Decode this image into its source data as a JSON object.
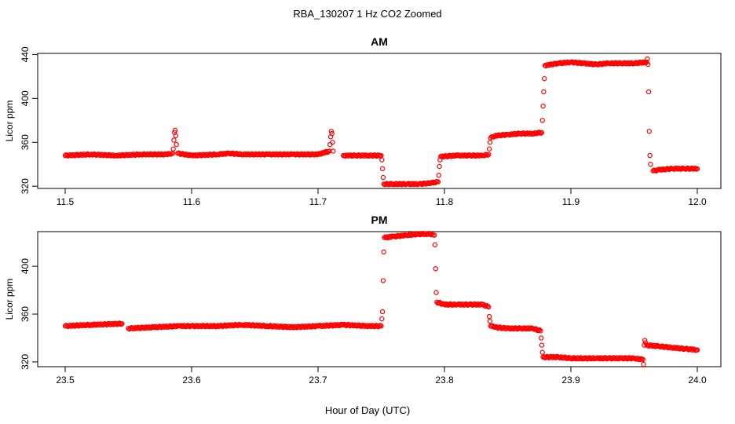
{
  "title": "RBA_130207  1 Hz CO2 Zoomed",
  "xlabel": "Hour of Day (UTC)",
  "colors": {
    "points": "#ff0000",
    "axis": "#000000"
  },
  "chart_data": [
    {
      "type": "scatter",
      "title": "AM",
      "ylabel": "Licor ppm",
      "xlim": [
        11.5,
        12.0
      ],
      "ylim": [
        318,
        441
      ],
      "xticks": [
        "11.5",
        "11.6",
        "11.7",
        "11.8",
        "11.9",
        "12.0"
      ],
      "yticks": [
        "320",
        "360",
        "400",
        "440"
      ],
      "grid": false,
      "series": [
        {
          "marker": "open-circle",
          "color": "#ff0000",
          "points": [
            [
              11.5,
              348
            ],
            [
              11.52,
              349
            ],
            [
              11.54,
              348
            ],
            [
              11.56,
              349
            ],
            [
              11.58,
              349
            ],
            [
              11.585,
              350
            ],
            [
              11.5855,
              354
            ],
            [
              11.586,
              362
            ],
            [
              11.5865,
              369
            ],
            [
              11.587,
              371
            ],
            [
              11.5875,
              366
            ],
            [
              11.588,
              358
            ],
            [
              11.589,
              350
            ],
            [
              11.6,
              348
            ],
            [
              11.62,
              349
            ],
            [
              11.63,
              350
            ],
            [
              11.64,
              349
            ],
            [
              11.66,
              349
            ],
            [
              11.68,
              349
            ],
            [
              11.7,
              349
            ],
            [
              11.709,
              352
            ],
            [
              11.7095,
              358
            ],
            [
              11.71,
              365
            ],
            [
              11.7105,
              370
            ],
            [
              11.711,
              368
            ],
            [
              11.7115,
              360
            ],
            [
              11.712,
              352
            ],
            [
              11.72,
              348
            ],
            [
              11.73,
              348
            ],
            [
              11.74,
              348
            ],
            [
              11.75,
              348
            ],
            [
              11.7505,
              344
            ],
            [
              11.751,
              336
            ],
            [
              11.7515,
              328
            ],
            [
              11.752,
              322
            ],
            [
              11.76,
              322
            ],
            [
              11.77,
              322
            ],
            [
              11.78,
              322
            ],
            [
              11.79,
              323
            ],
            [
              11.795,
              324
            ],
            [
              11.7955,
              330
            ],
            [
              11.796,
              338
            ],
            [
              11.7965,
              344
            ],
            [
              11.797,
              347
            ],
            [
              11.81,
              348
            ],
            [
              11.82,
              348
            ],
            [
              11.83,
              348
            ],
            [
              11.835,
              349
            ],
            [
              11.8355,
              354
            ],
            [
              11.836,
              360
            ],
            [
              11.8365,
              364
            ],
            [
              11.84,
              366
            ],
            [
              11.85,
              367
            ],
            [
              11.86,
              368
            ],
            [
              11.87,
              368
            ],
            [
              11.877,
              369
            ],
            [
              11.8775,
              380
            ],
            [
              11.878,
              393
            ],
            [
              11.8785,
              406
            ],
            [
              11.879,
              418
            ],
            [
              11.8795,
              430
            ],
            [
              11.89,
              432
            ],
            [
              11.9,
              433
            ],
            [
              11.91,
              432
            ],
            [
              11.92,
              431
            ],
            [
              11.93,
              432
            ],
            [
              11.94,
              432
            ],
            [
              11.95,
              432
            ],
            [
              11.96,
              433
            ],
            [
              11.9605,
              436
            ],
            [
              11.961,
              431
            ],
            [
              11.9615,
              406
            ],
            [
              11.962,
              370
            ],
            [
              11.9625,
              348
            ],
            [
              11.963,
              340
            ],
            [
              11.965,
              334
            ],
            [
              11.97,
              335
            ],
            [
              11.98,
              336
            ],
            [
              11.99,
              336
            ],
            [
              12.0,
              336
            ]
          ]
        }
      ]
    },
    {
      "type": "scatter",
      "title": "PM",
      "ylabel": "Licor ppm",
      "xlim": [
        23.5,
        24.0
      ],
      "ylim": [
        316,
        429
      ],
      "xticks": [
        "23.5",
        "23.6",
        "23.7",
        "23.8",
        "23.9",
        "24.0"
      ],
      "yticks": [
        "320",
        "360",
        "400"
      ],
      "grid": false,
      "series": [
        {
          "marker": "open-circle",
          "color": "#ff0000",
          "points": [
            [
              23.5,
              350
            ],
            [
              23.52,
              351
            ],
            [
              23.545,
              352
            ],
            [
              23.55,
              348
            ],
            [
              23.57,
              349
            ],
            [
              23.59,
              350
            ],
            [
              23.6,
              350
            ],
            [
              23.62,
              350
            ],
            [
              23.64,
              351
            ],
            [
              23.66,
              350
            ],
            [
              23.68,
              349
            ],
            [
              23.7,
              350
            ],
            [
              23.72,
              351
            ],
            [
              23.74,
              350
            ],
            [
              23.75,
              350
            ],
            [
              23.7505,
              356
            ],
            [
              23.751,
              362
            ],
            [
              23.7515,
              388
            ],
            [
              23.752,
              412
            ],
            [
              23.7525,
              424
            ],
            [
              23.76,
              425
            ],
            [
              23.77,
              426
            ],
            [
              23.78,
              427
            ],
            [
              23.79,
              427
            ],
            [
              23.792,
              426
            ],
            [
              23.7925,
              418
            ],
            [
              23.793,
              398
            ],
            [
              23.7935,
              378
            ],
            [
              23.794,
              370
            ],
            [
              23.8,
              368
            ],
            [
              23.81,
              368
            ],
            [
              23.82,
              368
            ],
            [
              23.83,
              368
            ],
            [
              23.835,
              366
            ],
            [
              23.8355,
              358
            ],
            [
              23.836,
              354
            ],
            [
              23.8365,
              350
            ],
            [
              23.84,
              349
            ],
            [
              23.85,
              348
            ],
            [
              23.86,
              348
            ],
            [
              23.87,
              348
            ],
            [
              23.876,
              346
            ],
            [
              23.8765,
              340
            ],
            [
              23.877,
              334
            ],
            [
              23.8775,
              328
            ],
            [
              23.878,
              324
            ],
            [
              23.89,
              324
            ],
            [
              23.9,
              323
            ],
            [
              23.91,
              323
            ],
            [
              23.92,
              323
            ],
            [
              23.93,
              323
            ],
            [
              23.94,
              323
            ],
            [
              23.95,
              323
            ],
            [
              23.957,
              322
            ],
            [
              23.9575,
              318
            ],
            [
              23.958,
              334
            ],
            [
              23.9585,
              338
            ],
            [
              23.959,
              336
            ],
            [
              23.96,
              334
            ],
            [
              23.97,
              333
            ],
            [
              23.98,
              332
            ],
            [
              23.99,
              331
            ],
            [
              24.0,
              330
            ]
          ]
        }
      ]
    }
  ]
}
